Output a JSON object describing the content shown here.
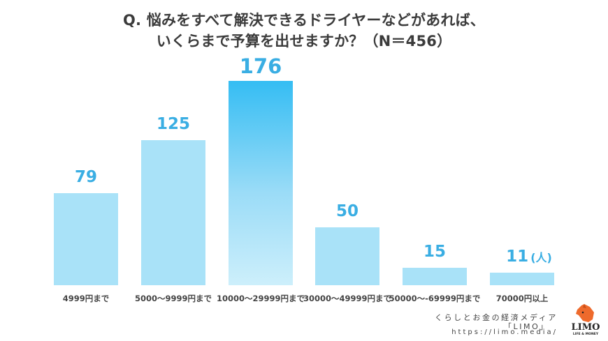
{
  "chart_data": {
    "type": "bar",
    "title": "Q. 悩みをすべて解決できるドライヤーなどがあれば、いくらまで予算を出せますか？（N＝456）",
    "title_lines": [
      "Q. 悩みをすべて解決できるドライヤーなどがあれば、",
      "いくらまで予算を出せますか？（N＝456）"
    ],
    "categories": [
      "4999円まで",
      "5000～9999円まで",
      "10000～29999円まで",
      "30000～49999円まで",
      "50000～-69999円まで",
      "70000円以上"
    ],
    "values": [
      79,
      125,
      176,
      50,
      15,
      11
    ],
    "value_labels": [
      "79",
      "125",
      "176",
      "50",
      "15",
      "11"
    ],
    "unit": "(人)",
    "highlight_index": 2,
    "xlabel": "",
    "ylabel": "",
    "ylim": [
      0,
      176
    ],
    "grid": false,
    "legend": null,
    "colors": {
      "bar": "#a9e2f8",
      "highlight_top": "#35bdf3",
      "highlight_bottom": "#cdeffb",
      "label": "#3aaee3",
      "title": "#3b3b3b"
    }
  },
  "footer": {
    "line1": "くらしとお金の経済メディア",
    "line2": "「LIMO」",
    "url": "https://limo.media/"
  },
  "logo": {
    "name": "LIMO",
    "tagline": "LIFE & MONEY",
    "color": "#ee6a2c"
  }
}
